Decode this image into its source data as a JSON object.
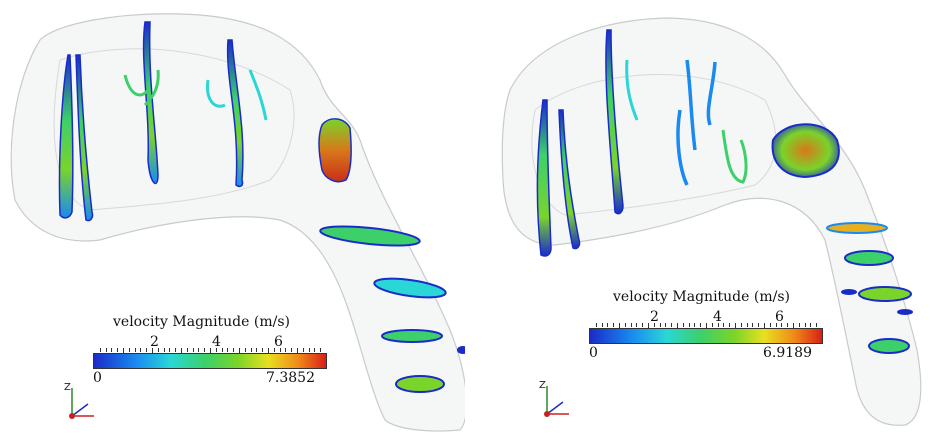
{
  "panels": [
    {
      "legend": {
        "title": "velocity Magnitude (m/s)",
        "ticks": [
          "2",
          "4",
          "6"
        ],
        "min_label": "0",
        "max_label": "7.3852"
      },
      "axes_label": "Z"
    },
    {
      "legend": {
        "title": "velocity Magnitude (m/s)",
        "ticks": [
          "2",
          "4",
          "6"
        ],
        "min_label": "0",
        "max_label": "6.9189"
      },
      "axes_label": "Z"
    }
  ],
  "colormap": [
    "#1a2cc8",
    "#1a8af0",
    "#2ad6d6",
    "#3dd06a",
    "#7ad42a",
    "#e8e020",
    "#f08a18",
    "#d82018"
  ]
}
